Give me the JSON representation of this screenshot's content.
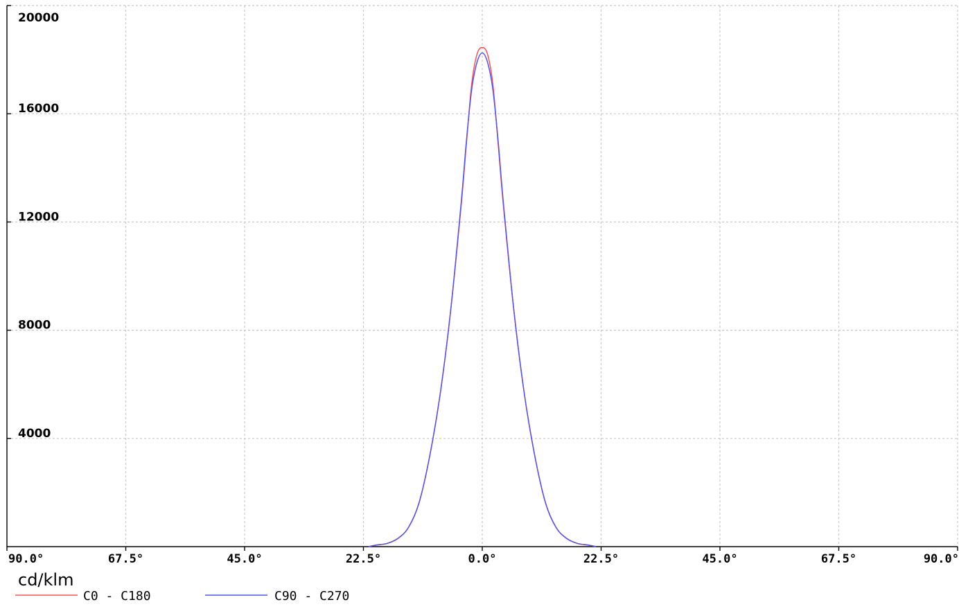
{
  "chart_data": {
    "type": "line",
    "ylabel": "cd/klm",
    "y_ticks": [
      "20000",
      "16000",
      "12000",
      "8000",
      "4000"
    ],
    "y_tick_values": [
      20000,
      16000,
      12000,
      8000,
      4000
    ],
    "ylim": [
      0,
      20000
    ],
    "x_ticks": [
      "90.0°",
      "67.5°",
      "45.0°",
      "22.5°",
      "0.0°",
      "22.5°",
      "45.0°",
      "67.5°",
      "90.0°"
    ],
    "x_tick_values": [
      -90,
      -67.5,
      -45,
      -22.5,
      0,
      22.5,
      45,
      67.5,
      90
    ],
    "xlim": [
      -90,
      90
    ],
    "grid": true,
    "legend_placement": "bottom-left",
    "series": [
      {
        "name": "C0 - C180",
        "color": "#ff5050",
        "x": [
          -21.5,
          -20,
          -18,
          -16,
          -14,
          -12,
          -10,
          -8,
          -6,
          -4,
          -3,
          -2,
          -1,
          0,
          1,
          2,
          3,
          4,
          6,
          8,
          10,
          12,
          14,
          16,
          18,
          20,
          21.5
        ],
        "y": [
          0,
          60,
          120,
          300,
          700,
          1600,
          3300,
          5600,
          8700,
          12600,
          14900,
          17100,
          18200,
          18450,
          18200,
          17100,
          14900,
          12600,
          8700,
          5600,
          3300,
          1600,
          700,
          300,
          120,
          60,
          0
        ]
      },
      {
        "name": "C90 - C270",
        "color": "#5050ff",
        "x": [
          -21.5,
          -20,
          -18,
          -16,
          -14,
          -12,
          -10,
          -8,
          -6,
          -4,
          -3,
          -2,
          -1,
          0,
          1,
          2,
          3,
          4,
          6,
          8,
          10,
          12,
          14,
          16,
          18,
          20,
          21.5
        ],
        "y": [
          0,
          60,
          120,
          300,
          700,
          1600,
          3300,
          5600,
          8700,
          12700,
          15000,
          16900,
          17900,
          18250,
          17900,
          16900,
          15000,
          12700,
          8700,
          5600,
          3300,
          1600,
          700,
          300,
          120,
          60,
          0
        ]
      }
    ]
  }
}
